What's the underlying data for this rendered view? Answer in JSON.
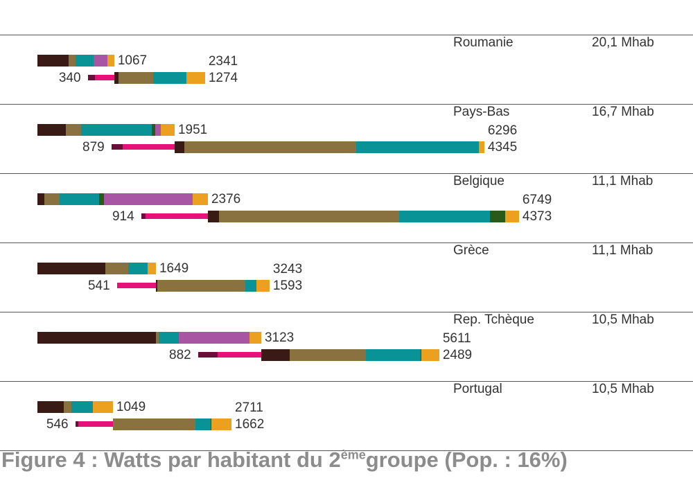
{
  "caption": {
    "prefix": "Figure 4 : Watts par habitant  du 2",
    "superscript": "ème",
    "suffix": "groupe (Pop. : 16%)"
  },
  "chart_data": {
    "type": "bar",
    "title": "Figure 4 : Watts par habitant  du 2ème groupe (Pop. : 16%)",
    "unit": "Watts par habitant",
    "colors": {
      "dark_brown": "#3a1a14",
      "olive": "#8a7240",
      "teal": "#0a9396",
      "purple": "#a855a3",
      "orange": "#eba01f",
      "dark_green": "#2a5a1a",
      "maroon": "#6b0f3a",
      "pink": "#e6127a"
    },
    "countries": [
      {
        "name": "Roumanie",
        "population": "20,1 Mhab",
        "total_label": "1067",
        "upper_total": 1067,
        "lower_left_label": "340",
        "lower_negative": 340,
        "lower_total_label": "1274",
        "lower_total": 1274,
        "peak_label": "2341",
        "peak": 2341,
        "upper_segments": [
          {
            "color": "dark_brown",
            "value": 403
          },
          {
            "color": "olive",
            "value": 89
          },
          {
            "color": "teal",
            "value": 233
          },
          {
            "color": "purple",
            "value": 179
          },
          {
            "color": "orange",
            "value": 89
          }
        ],
        "lower_negative_segments": [
          {
            "color": "maroon",
            "value": 89
          },
          {
            "color": "pink",
            "value": 251
          }
        ],
        "lower_segments": [
          {
            "color": "dark_brown",
            "value": 54
          },
          {
            "color": "olive",
            "value": 448
          },
          {
            "color": "teal",
            "value": 430
          },
          {
            "color": "orange",
            "value": 242
          }
        ]
      },
      {
        "name": "Pays-Bas",
        "population": "16,7 Mhab",
        "total_label": "1951",
        "upper_total": 1951,
        "lower_left_label": "879",
        "lower_negative": 879,
        "lower_total_label": "4345",
        "lower_total": 4345,
        "peak_label": "6296",
        "peak": 6296,
        "upper_segments": [
          {
            "color": "dark_brown",
            "value": 367
          },
          {
            "color": "olive",
            "value": 197
          },
          {
            "color": "teal",
            "value": 914
          },
          {
            "color": "dark_green",
            "value": 45
          },
          {
            "color": "purple",
            "value": 72
          },
          {
            "color": "orange",
            "value": 179
          }
        ],
        "lower_negative_segments": [
          {
            "color": "maroon",
            "value": 143
          },
          {
            "color": "pink",
            "value": 672
          }
        ],
        "lower_segments": [
          {
            "color": "dark_brown",
            "value": 125
          },
          {
            "color": "olive",
            "value": 2222
          },
          {
            "color": "teal",
            "value": 1586
          },
          {
            "color": "orange",
            "value": 72
          }
        ]
      },
      {
        "name": "Belgique",
        "population": "11,1 Mhab",
        "total_label": "2376",
        "upper_total": 2376,
        "lower_left_label": "914",
        "lower_negative": 914,
        "lower_total_label": "4373",
        "lower_total": 4373,
        "peak_label": "6749",
        "peak": 6749,
        "upper_segments": [
          {
            "color": "dark_brown",
            "value": 89
          },
          {
            "color": "olive",
            "value": 197
          },
          {
            "color": "teal",
            "value": 511
          },
          {
            "color": "dark_green",
            "value": 63
          },
          {
            "color": "purple",
            "value": 1147
          },
          {
            "color": "orange",
            "value": 197
          }
        ],
        "lower_negative_segments": [
          {
            "color": "maroon",
            "value": 54
          },
          {
            "color": "pink",
            "value": 806
          }
        ],
        "lower_segments": [
          {
            "color": "dark_brown",
            "value": 143
          },
          {
            "color": "olive",
            "value": 2330
          },
          {
            "color": "teal",
            "value": 1174
          },
          {
            "color": "dark_green",
            "value": 197
          },
          {
            "color": "orange",
            "value": 179
          }
        ]
      },
      {
        "name": "Grèce",
        "population": "11,1 Mhab",
        "total_label": "1649",
        "upper_total": 1649,
        "lower_left_label": "541",
        "lower_negative": 541,
        "lower_total_label": "1593",
        "lower_total": 1593,
        "peak_label": "3243",
        "peak": 3243,
        "upper_segments": [
          {
            "color": "dark_brown",
            "value": 878
          },
          {
            "color": "olive",
            "value": 296
          },
          {
            "color": "teal",
            "value": 251
          },
          {
            "color": "orange",
            "value": 107
          }
        ],
        "lower_negative_segments": [
          {
            "color": "pink",
            "value": 502
          }
        ],
        "lower_segments": [
          {
            "color": "dark_brown",
            "value": 18
          },
          {
            "color": "olive",
            "value": 1138
          },
          {
            "color": "teal",
            "value": 143
          },
          {
            "color": "orange",
            "value": 170
          }
        ]
      },
      {
        "name": "Rep. Tchèque",
        "population": "10,5 Mhab",
        "total_label": "3123",
        "upper_total": 3123,
        "lower_left_label": "882",
        "lower_negative": 882,
        "lower_total_label": "2489",
        "lower_total": 2489,
        "peak_label": "5611",
        "peak": 5611,
        "upper_segments": [
          {
            "color": "dark_brown",
            "value": 1532
          },
          {
            "color": "olive",
            "value": 36
          },
          {
            "color": "teal",
            "value": 260
          },
          {
            "color": "purple",
            "value": 914
          },
          {
            "color": "orange",
            "value": 152
          }
        ],
        "lower_negative_segments": [
          {
            "color": "maroon",
            "value": 251
          },
          {
            "color": "pink",
            "value": 564
          }
        ],
        "lower_segments": [
          {
            "color": "dark_brown",
            "value": 367
          },
          {
            "color": "olive",
            "value": 985
          },
          {
            "color": "teal",
            "value": 708
          },
          {
            "color": "dark_green",
            "value": 9
          },
          {
            "color": "orange",
            "value": 233
          }
        ]
      },
      {
        "name": "Portugal",
        "population": "10,5 Mhab",
        "total_label": "1049",
        "upper_total": 1049,
        "lower_left_label": "546",
        "lower_negative": 546,
        "lower_total_label": "1662",
        "lower_total": 1662,
        "peak_label": "2711",
        "peak": 2711,
        "upper_segments": [
          {
            "color": "dark_brown",
            "value": 340
          },
          {
            "color": "olive",
            "value": 98
          },
          {
            "color": "teal",
            "value": 278
          },
          {
            "color": "orange",
            "value": 260
          }
        ],
        "lower_negative_segments": [
          {
            "color": "maroon",
            "value": 36
          },
          {
            "color": "pink",
            "value": 448
          }
        ],
        "lower_segments": [
          {
            "color": "olive",
            "value": 1067
          },
          {
            "color": "teal",
            "value": 197
          },
          {
            "color": "dark_green",
            "value": 9
          },
          {
            "color": "orange",
            "value": 260
          }
        ]
      }
    ]
  }
}
